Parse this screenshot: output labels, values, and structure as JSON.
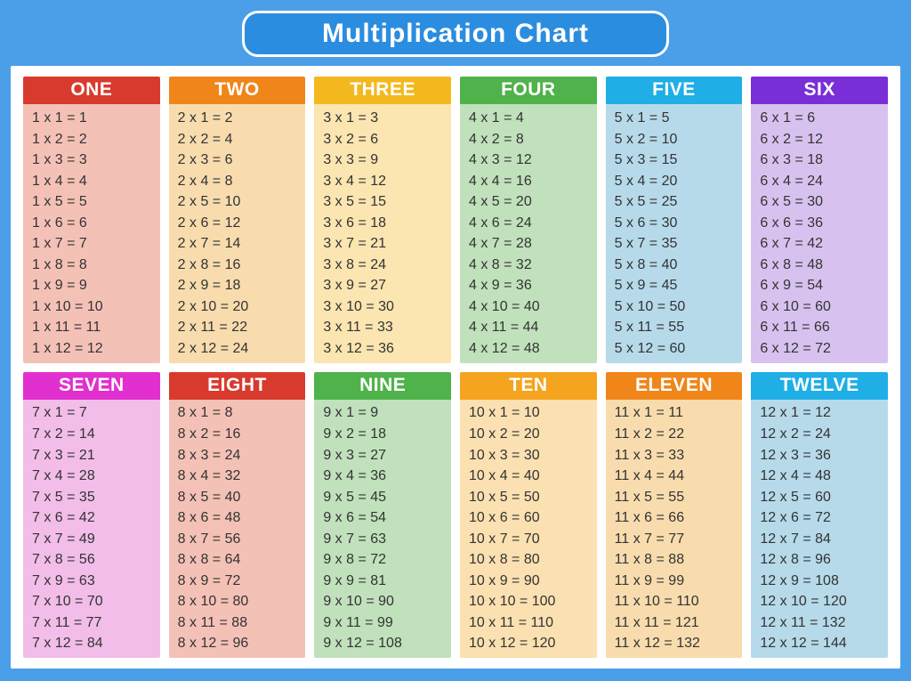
{
  "title": "Multiplication Chart",
  "page_bg": "#4a9fe8",
  "title_bg": "#2b8de0",
  "title_border": "#ffffff",
  "title_color": "#ffffff",
  "panel_bg": "#ffffff",
  "text_color": "#333333",
  "row_fontsize": 16,
  "header_fontsize": 21,
  "columns": [
    {
      "label": "ONE",
      "n": 1,
      "header_bg": "#d93a2e",
      "body_bg": "#f4c1b7"
    },
    {
      "label": "TWO",
      "n": 2,
      "header_bg": "#f08519",
      "body_bg": "#f8dcae"
    },
    {
      "label": "THREE",
      "n": 3,
      "header_bg": "#f4b81f",
      "body_bg": "#fbe5b1"
    },
    {
      "label": "FOUR",
      "n": 4,
      "header_bg": "#4fb24a",
      "body_bg": "#c0e1bb"
    },
    {
      "label": "FIVE",
      "n": 5,
      "header_bg": "#1faee6",
      "body_bg": "#b6daea"
    },
    {
      "label": "SIX",
      "n": 6,
      "header_bg": "#7a2fd6",
      "body_bg": "#d7c2ef"
    },
    {
      "label": "SEVEN",
      "n": 7,
      "header_bg": "#e22fcf",
      "body_bg": "#f2bde9"
    },
    {
      "label": "EIGHT",
      "n": 8,
      "header_bg": "#d93a2e",
      "body_bg": "#f4c1b7"
    },
    {
      "label": "NINE",
      "n": 9,
      "header_bg": "#4fb24a",
      "body_bg": "#c0e1bb"
    },
    {
      "label": "TEN",
      "n": 10,
      "header_bg": "#f4a41f",
      "body_bg": "#fbe0b1"
    },
    {
      "label": "ELEVEN",
      "n": 11,
      "header_bg": "#f08519",
      "body_bg": "#f8dcae"
    },
    {
      "label": "TWELVE",
      "n": 12,
      "header_bg": "#1faee6",
      "body_bg": "#b6daea"
    }
  ],
  "multipliers": [
    1,
    2,
    3,
    4,
    5,
    6,
    7,
    8,
    9,
    10,
    11,
    12
  ]
}
